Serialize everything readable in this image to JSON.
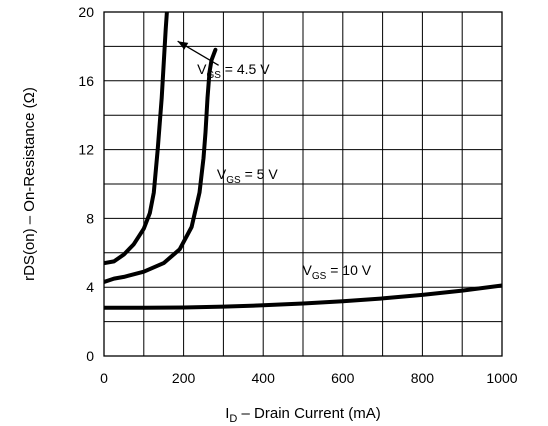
{
  "chart_data": {
    "type": "line",
    "title": "",
    "xlabel": {
      "main": "I",
      "sub": "D",
      "rest": " – Drain Current (mA)"
    },
    "ylabel": {
      "main": "rDS(on) – On-Resistance (",
      "symbol": "Ω",
      "rest": ")"
    },
    "xlim": [
      0,
      1000
    ],
    "ylim": [
      0,
      20
    ],
    "xticks": [
      0,
      200,
      400,
      600,
      800,
      1000
    ],
    "yticks": [
      0,
      4,
      8,
      12,
      16,
      20
    ],
    "grid": true,
    "series": [
      {
        "name": "VGS = 4.5 V",
        "x": [
          0,
          25,
          50,
          75,
          100,
          115,
          125,
          135,
          145,
          150,
          155,
          158
        ],
        "y": [
          5.4,
          5.5,
          5.9,
          6.5,
          7.4,
          8.3,
          9.5,
          12.0,
          15.0,
          17.0,
          19.0,
          20.0
        ]
      },
      {
        "name": "VGS = 5 V",
        "x": [
          0,
          25,
          50,
          100,
          150,
          190,
          220,
          240,
          250,
          255,
          260,
          265,
          270,
          280
        ],
        "y": [
          4.3,
          4.5,
          4.6,
          4.9,
          5.4,
          6.2,
          7.5,
          9.5,
          11.5,
          13.0,
          15.0,
          16.5,
          17.2,
          17.8
        ]
      },
      {
        "name": "VGS = 10 V",
        "x": [
          0,
          100,
          200,
          300,
          400,
          500,
          600,
          700,
          800,
          900,
          1000
        ],
        "y": [
          2.8,
          2.8,
          2.82,
          2.87,
          2.95,
          3.05,
          3.18,
          3.35,
          3.55,
          3.8,
          4.1
        ]
      }
    ],
    "annotations": [
      {
        "series": 0,
        "label": {
          "main": "V",
          "sub": "GS",
          "rest": " = 4.5 V"
        },
        "x": 325,
        "y": 16.4,
        "arrow_to": {
          "x": 185,
          "y": 18.3
        },
        "arrow_from": {
          "x": 288,
          "y": 16.9
        }
      },
      {
        "series": 1,
        "label": {
          "main": "V",
          "sub": "GS",
          "rest": " = 5 V"
        },
        "x": 360,
        "y": 10.3
      },
      {
        "series": 2,
        "label": {
          "main": "V",
          "sub": "GS",
          "rest": " = 10 V"
        },
        "x": 585,
        "y": 4.7
      }
    ]
  }
}
